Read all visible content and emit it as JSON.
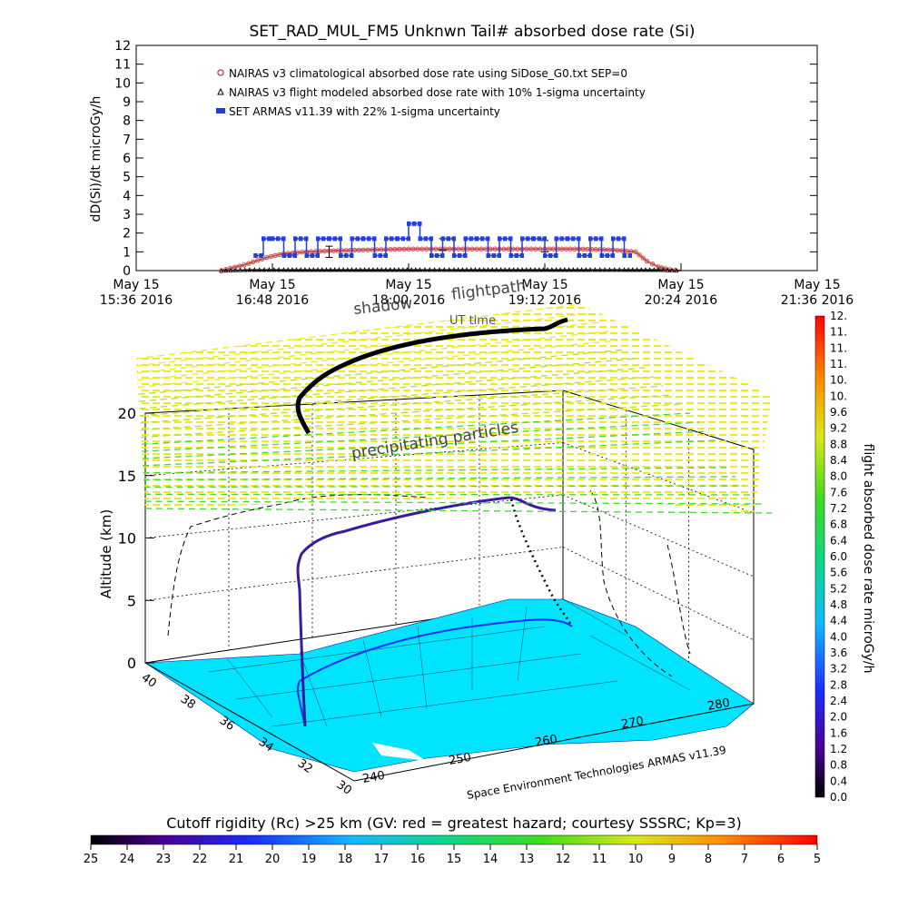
{
  "chart_data": [
    {
      "type": "line",
      "title": "SET_RAD_MUL_FM5 Unknwn Tail#  absorbed dose rate (Si)",
      "ylabel": "dD(Si)/dt microGy/h",
      "ylim": [
        0,
        12
      ],
      "yticks": [
        "0",
        "1",
        "2",
        "3",
        "4",
        "5",
        "6",
        "7",
        "8",
        "9",
        "10",
        "11",
        "12"
      ],
      "xlim_hours": [
        15.6,
        21.6
      ],
      "xticks": [
        {
          "t": 15.6,
          "line1": "May 15",
          "line2": "15:36 2016"
        },
        {
          "t": 16.8,
          "line1": "May 15",
          "line2": "16:48 2016"
        },
        {
          "t": 18.0,
          "line1": "May 15",
          "line2": "18:00 2016"
        },
        {
          "t": 19.2,
          "line1": "May 15",
          "line2": "19:12 2016"
        },
        {
          "t": 20.4,
          "line1": "May 15",
          "line2": "20:24 2016"
        },
        {
          "t": 21.6,
          "line1": "May 15",
          "line2": "21:36 2016"
        }
      ],
      "xlabel_overlay": "UT time",
      "series": [
        {
          "name": "NAIRAS v3 climatological absorbed dose rate using SiDose_G0.txt SEP=0",
          "color": "#c85050",
          "x": [
            16.35,
            16.55,
            16.75,
            16.9,
            17.1,
            17.3,
            17.6,
            18.0,
            18.4,
            18.8,
            19.2,
            19.5,
            19.8,
            20.0,
            20.1,
            20.2,
            20.3,
            20.4
          ],
          "values": [
            0.0,
            0.3,
            0.7,
            0.9,
            1.0,
            1.05,
            1.1,
            1.15,
            1.15,
            1.15,
            1.15,
            1.15,
            1.1,
            1.0,
            0.5,
            0.2,
            0.05,
            0.0
          ]
        },
        {
          "name": "NAIRAS v3 flight modeled absorbed dose rate with 10% 1-sigma uncertainty",
          "color": "#000000",
          "x": [
            16.35,
            16.6,
            16.9,
            17.2,
            17.5,
            17.8,
            18.1,
            18.4,
            18.7,
            19.0,
            19.3,
            19.6,
            19.9,
            20.2,
            20.4
          ],
          "values": [
            0.0,
            0.05,
            0.05,
            0.05,
            0.05,
            0.05,
            0.05,
            0.05,
            0.05,
            0.05,
            0.05,
            0.05,
            0.05,
            0.05,
            0.0
          ],
          "error_bars": [
            {
              "x": 17.3,
              "value": 1.0,
              "err": 0.3
            },
            {
              "x": 18.3,
              "value": 1.4,
              "err": 0.3
            },
            {
              "x": 19.2,
              "value": 1.3,
              "err": 0.3
            }
          ]
        },
        {
          "name": "SET ARMAS v11.39 with 22% 1-sigma uncertainty",
          "color": "#1f3fe0",
          "x": [
            16.65,
            16.72,
            16.8,
            16.9,
            17.0,
            17.1,
            17.2,
            17.3,
            17.4,
            17.5,
            17.6,
            17.7,
            17.8,
            17.9,
            18.0,
            18.1,
            18.2,
            18.3,
            18.4,
            18.5,
            18.6,
            18.7,
            18.8,
            18.9,
            19.0,
            19.1,
            19.2,
            19.3,
            19.4,
            19.5,
            19.6,
            19.7,
            19.8,
            19.9
          ],
          "values": [
            0.8,
            1.7,
            1.7,
            0.8,
            1.7,
            0.8,
            1.7,
            1.7,
            0.8,
            1.7,
            1.7,
            0.8,
            1.7,
            1.7,
            2.5,
            1.7,
            0.8,
            1.7,
            0.8,
            1.7,
            1.7,
            0.8,
            1.7,
            0.8,
            1.7,
            1.7,
            0.8,
            1.7,
            1.7,
            0.8,
            1.7,
            0.8,
            1.7,
            0.8
          ]
        }
      ]
    },
    {
      "type": "scatter",
      "zlabel": "Altitude (km)",
      "zticks": [
        "0",
        "5",
        "10",
        "15",
        "20"
      ],
      "zlim": [
        0,
        20
      ],
      "lat_ticks": [
        "40",
        "38",
        "36",
        "34",
        "32",
        "30"
      ],
      "lon_ticks": [
        "240",
        "250",
        "260",
        "270",
        "280"
      ],
      "annotations": {
        "shadow": "shadow",
        "flightpath": "flightpath",
        "precipitating": "precipitating particles",
        "credit": "Space Environment Technologies ARMAS v11.39"
      },
      "color_scale": {
        "label": "flight absorbed dose rate microGy/h",
        "ticks": [
          "0.0",
          "0.4",
          "0.8",
          "1.2",
          "1.6",
          "2.0",
          "2.4",
          "2.8",
          "3.2",
          "3.6",
          "4.0",
          "4.4",
          "4.8",
          "5.2",
          "5.6",
          "6.0",
          "6.4",
          "6.8",
          "7.2",
          "7.6",
          "8.0",
          "8.4",
          "8.8",
          "9.2",
          "9.6",
          "10.",
          "10.",
          "11.",
          "11.",
          "11.",
          "12."
        ]
      }
    },
    {
      "type": "heatmap",
      "title": "Cutoff rigidity (Rc) >25 km (GV: red = greatest hazard; courtesy SSSRC; Kp=3)",
      "ticks": [
        "25",
        "24",
        "23",
        "22",
        "21",
        "20",
        "19",
        "18",
        "17",
        "16",
        "15",
        "14",
        "13",
        "12",
        "11",
        "10",
        "9",
        "8",
        "7",
        "6",
        "5"
      ]
    }
  ]
}
